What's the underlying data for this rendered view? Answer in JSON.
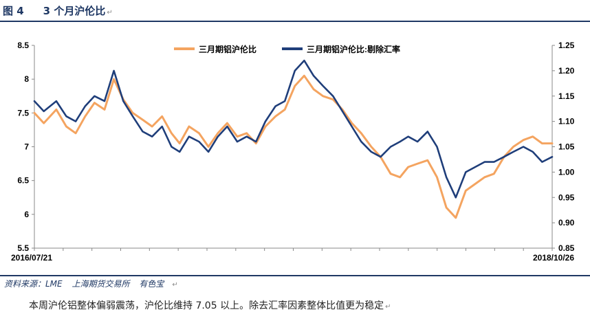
{
  "figure": {
    "number": "图 4",
    "title": "3 个月沪伦比",
    "return_mark": "↵"
  },
  "source": {
    "label": "资料来源：LME",
    "items": [
      "上海期货交易所",
      "有色宝"
    ],
    "return_mark": "↵"
  },
  "body": {
    "text": "本周沪伦铝整体偏弱震荡，沪伦比维持 7.05 以上。除去汇率因素整体比值更为稳定",
    "return_mark": "↵"
  },
  "colors": {
    "orange": "#f4a460",
    "navy": "#1f3e7a",
    "heading": "#1f3864"
  },
  "chart_data": {
    "type": "line",
    "title": "",
    "x_start": "2016/07/21",
    "x_end": "2018/10/26",
    "x_tick_labels": [
      "2016/07/21",
      "2018/10/26"
    ],
    "y_left": {
      "min": 5.5,
      "max": 8.5,
      "ticks": [
        "5.5",
        "6",
        "6.5",
        "7",
        "7.5",
        "8",
        "8.5"
      ]
    },
    "y_right": {
      "min": 0.85,
      "max": 1.25,
      "ticks": [
        "0.85",
        "0.90",
        "0.95",
        "1.00",
        "1.05",
        "1.10",
        "1.15",
        "1.20",
        "1.25"
      ]
    },
    "legend_position": "top",
    "grid": false,
    "series": [
      {
        "name": "三月期铝沪伦比",
        "axis": "left",
        "color": "#f4a460",
        "x": [
          "2016/07/21",
          "2016/08/05",
          "2016/08/25",
          "2016/09/10",
          "2016/09/25",
          "2016/10/10",
          "2016/10/25",
          "2016/11/10",
          "2016/11/25",
          "2016/12/10",
          "2016/12/25",
          "2017/01/10",
          "2017/01/25",
          "2017/02/10",
          "2017/02/25",
          "2017/03/10",
          "2017/03/25",
          "2017/04/10",
          "2017/04/25",
          "2017/05/10",
          "2017/05/25",
          "2017/06/10",
          "2017/06/25",
          "2017/07/10",
          "2017/07/25",
          "2017/08/10",
          "2017/08/25",
          "2017/09/10",
          "2017/09/25",
          "2017/10/10",
          "2017/10/25",
          "2017/11/10",
          "2017/11/25",
          "2017/12/10",
          "2017/12/25",
          "2018/01/10",
          "2018/01/25",
          "2018/02/10",
          "2018/02/25",
          "2018/03/10",
          "2018/03/25",
          "2018/04/10",
          "2018/04/25",
          "2018/05/10",
          "2018/05/25",
          "2018/06/10",
          "2018/06/25",
          "2018/07/10",
          "2018/07/25",
          "2018/08/10",
          "2018/08/25",
          "2018/09/10",
          "2018/09/25",
          "2018/10/10",
          "2018/10/26"
        ],
        "values": [
          7.5,
          7.35,
          7.55,
          7.3,
          7.2,
          7.45,
          7.65,
          7.55,
          8.0,
          7.7,
          7.5,
          7.4,
          7.3,
          7.45,
          7.2,
          7.05,
          7.3,
          7.2,
          7.0,
          7.2,
          7.35,
          7.15,
          7.2,
          7.05,
          7.3,
          7.45,
          7.55,
          7.9,
          8.05,
          7.85,
          7.75,
          7.7,
          7.55,
          7.35,
          7.2,
          7.0,
          6.85,
          6.6,
          6.55,
          6.7,
          6.75,
          6.8,
          6.55,
          6.1,
          5.95,
          6.35,
          6.45,
          6.55,
          6.6,
          6.85,
          7.0,
          7.1,
          7.15,
          7.05,
          7.05
        ]
      },
      {
        "name": "三月期铝沪伦比:剔除汇率",
        "axis": "right",
        "color": "#1f3e7a",
        "x": [
          "2016/07/21",
          "2016/08/05",
          "2016/08/25",
          "2016/09/10",
          "2016/09/25",
          "2016/10/10",
          "2016/10/25",
          "2016/11/10",
          "2016/11/25",
          "2016/12/10",
          "2016/12/25",
          "2017/01/10",
          "2017/01/25",
          "2017/02/10",
          "2017/02/25",
          "2017/03/10",
          "2017/03/25",
          "2017/04/10",
          "2017/04/25",
          "2017/05/10",
          "2017/05/25",
          "2017/06/10",
          "2017/06/25",
          "2017/07/10",
          "2017/07/25",
          "2017/08/10",
          "2017/08/25",
          "2017/09/10",
          "2017/09/25",
          "2017/10/10",
          "2017/10/25",
          "2017/11/10",
          "2017/11/25",
          "2017/12/10",
          "2017/12/25",
          "2018/01/10",
          "2018/01/25",
          "2018/02/10",
          "2018/02/25",
          "2018/03/10",
          "2018/03/25",
          "2018/04/10",
          "2018/04/25",
          "2018/05/10",
          "2018/05/25",
          "2018/06/10",
          "2018/06/25",
          "2018/07/10",
          "2018/07/25",
          "2018/08/10",
          "2018/08/25",
          "2018/09/10",
          "2018/09/25",
          "2018/10/10",
          "2018/10/26"
        ],
        "values": [
          1.14,
          1.12,
          1.14,
          1.11,
          1.1,
          1.13,
          1.15,
          1.14,
          1.2,
          1.14,
          1.11,
          1.08,
          1.07,
          1.09,
          1.05,
          1.04,
          1.07,
          1.06,
          1.04,
          1.07,
          1.09,
          1.06,
          1.07,
          1.06,
          1.1,
          1.13,
          1.14,
          1.2,
          1.22,
          1.19,
          1.17,
          1.15,
          1.12,
          1.09,
          1.06,
          1.04,
          1.03,
          1.05,
          1.06,
          1.07,
          1.06,
          1.08,
          1.05,
          0.99,
          0.95,
          1.0,
          1.01,
          1.02,
          1.02,
          1.03,
          1.04,
          1.05,
          1.04,
          1.02,
          1.03
        ]
      }
    ]
  }
}
